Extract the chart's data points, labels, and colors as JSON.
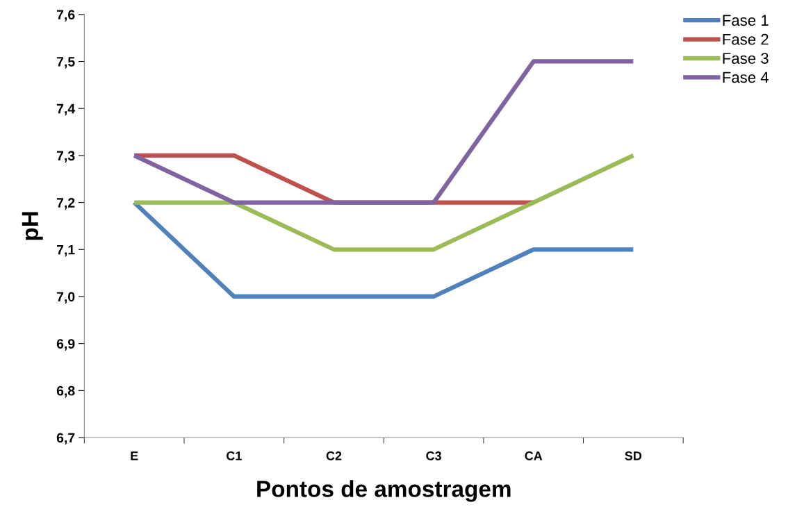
{
  "chart_data": {
    "type": "line",
    "xlabel": "Pontos de amostragem",
    "ylabel": "pH",
    "categories": [
      "E",
      "C1",
      "C2",
      "C3",
      "CA",
      "SD"
    ],
    "series": [
      {
        "name": "Fase 1",
        "color": "#4f81bd",
        "values": [
          7.2,
          7.0,
          7.0,
          7.0,
          7.1,
          7.1
        ]
      },
      {
        "name": "Fase 2",
        "color": "#c0504d",
        "values": [
          7.3,
          7.3,
          7.2,
          7.2,
          7.2,
          null
        ]
      },
      {
        "name": "Fase 3",
        "color": "#9bbb59",
        "values": [
          7.2,
          7.2,
          7.1,
          7.1,
          7.2,
          7.3
        ]
      },
      {
        "name": "Fase 4",
        "color": "#8064a2",
        "values": [
          7.3,
          7.2,
          7.2,
          7.2,
          7.5,
          7.5
        ]
      }
    ],
    "ylim": [
      6.7,
      7.6
    ],
    "yticks": [
      {
        "value": 6.7,
        "label": "6,7"
      },
      {
        "value": 6.8,
        "label": "6,8"
      },
      {
        "value": 6.9,
        "label": "6,9"
      },
      {
        "value": 7.0,
        "label": "7,0"
      },
      {
        "value": 7.1,
        "label": "7,1"
      },
      {
        "value": 7.2,
        "label": "7,2"
      },
      {
        "value": 7.3,
        "label": "7,3"
      },
      {
        "value": 7.4,
        "label": "7,4"
      },
      {
        "value": 7.5,
        "label": "7,5"
      },
      {
        "value": 7.6,
        "label": "7,6"
      }
    ],
    "grid": false,
    "legend": "top right",
    "marker": "none",
    "line_style": "solid"
  }
}
